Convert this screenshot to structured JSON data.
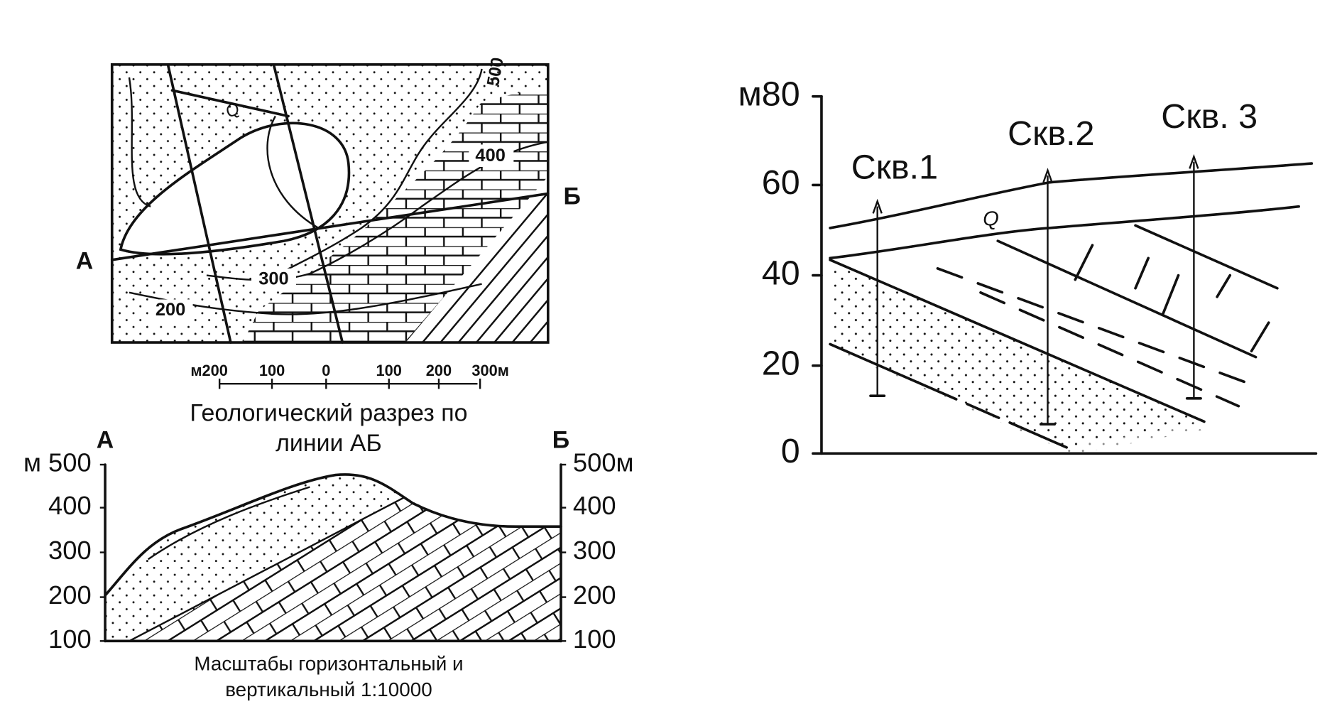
{
  "map": {
    "contours": [
      "500",
      "400",
      "300",
      "200"
    ],
    "q_label": "Q",
    "point_a": "А",
    "point_b": "Б"
  },
  "scale_bar": {
    "labels": [
      "м200",
      "100",
      "0",
      "100",
      "200",
      "300м"
    ]
  },
  "section": {
    "title_lines": [
      "Геологический разрез по",
      "линии АБ"
    ],
    "point_a": "А",
    "point_b": "Б",
    "left_axis": [
      "м 500",
      "400",
      "300",
      "200",
      "100"
    ],
    "right_axis": [
      "500м",
      "400",
      "300",
      "200",
      "100"
    ],
    "caption_lines": [
      "Масштабы горизонтальный и",
      "вертикальный 1:10000"
    ]
  },
  "boreholes": {
    "axis": [
      "м80",
      "60",
      "40",
      "20",
      "0"
    ],
    "wells": [
      "Скв.1",
      "Скв.2",
      "Скв. 3"
    ],
    "q_label": "Q"
  }
}
